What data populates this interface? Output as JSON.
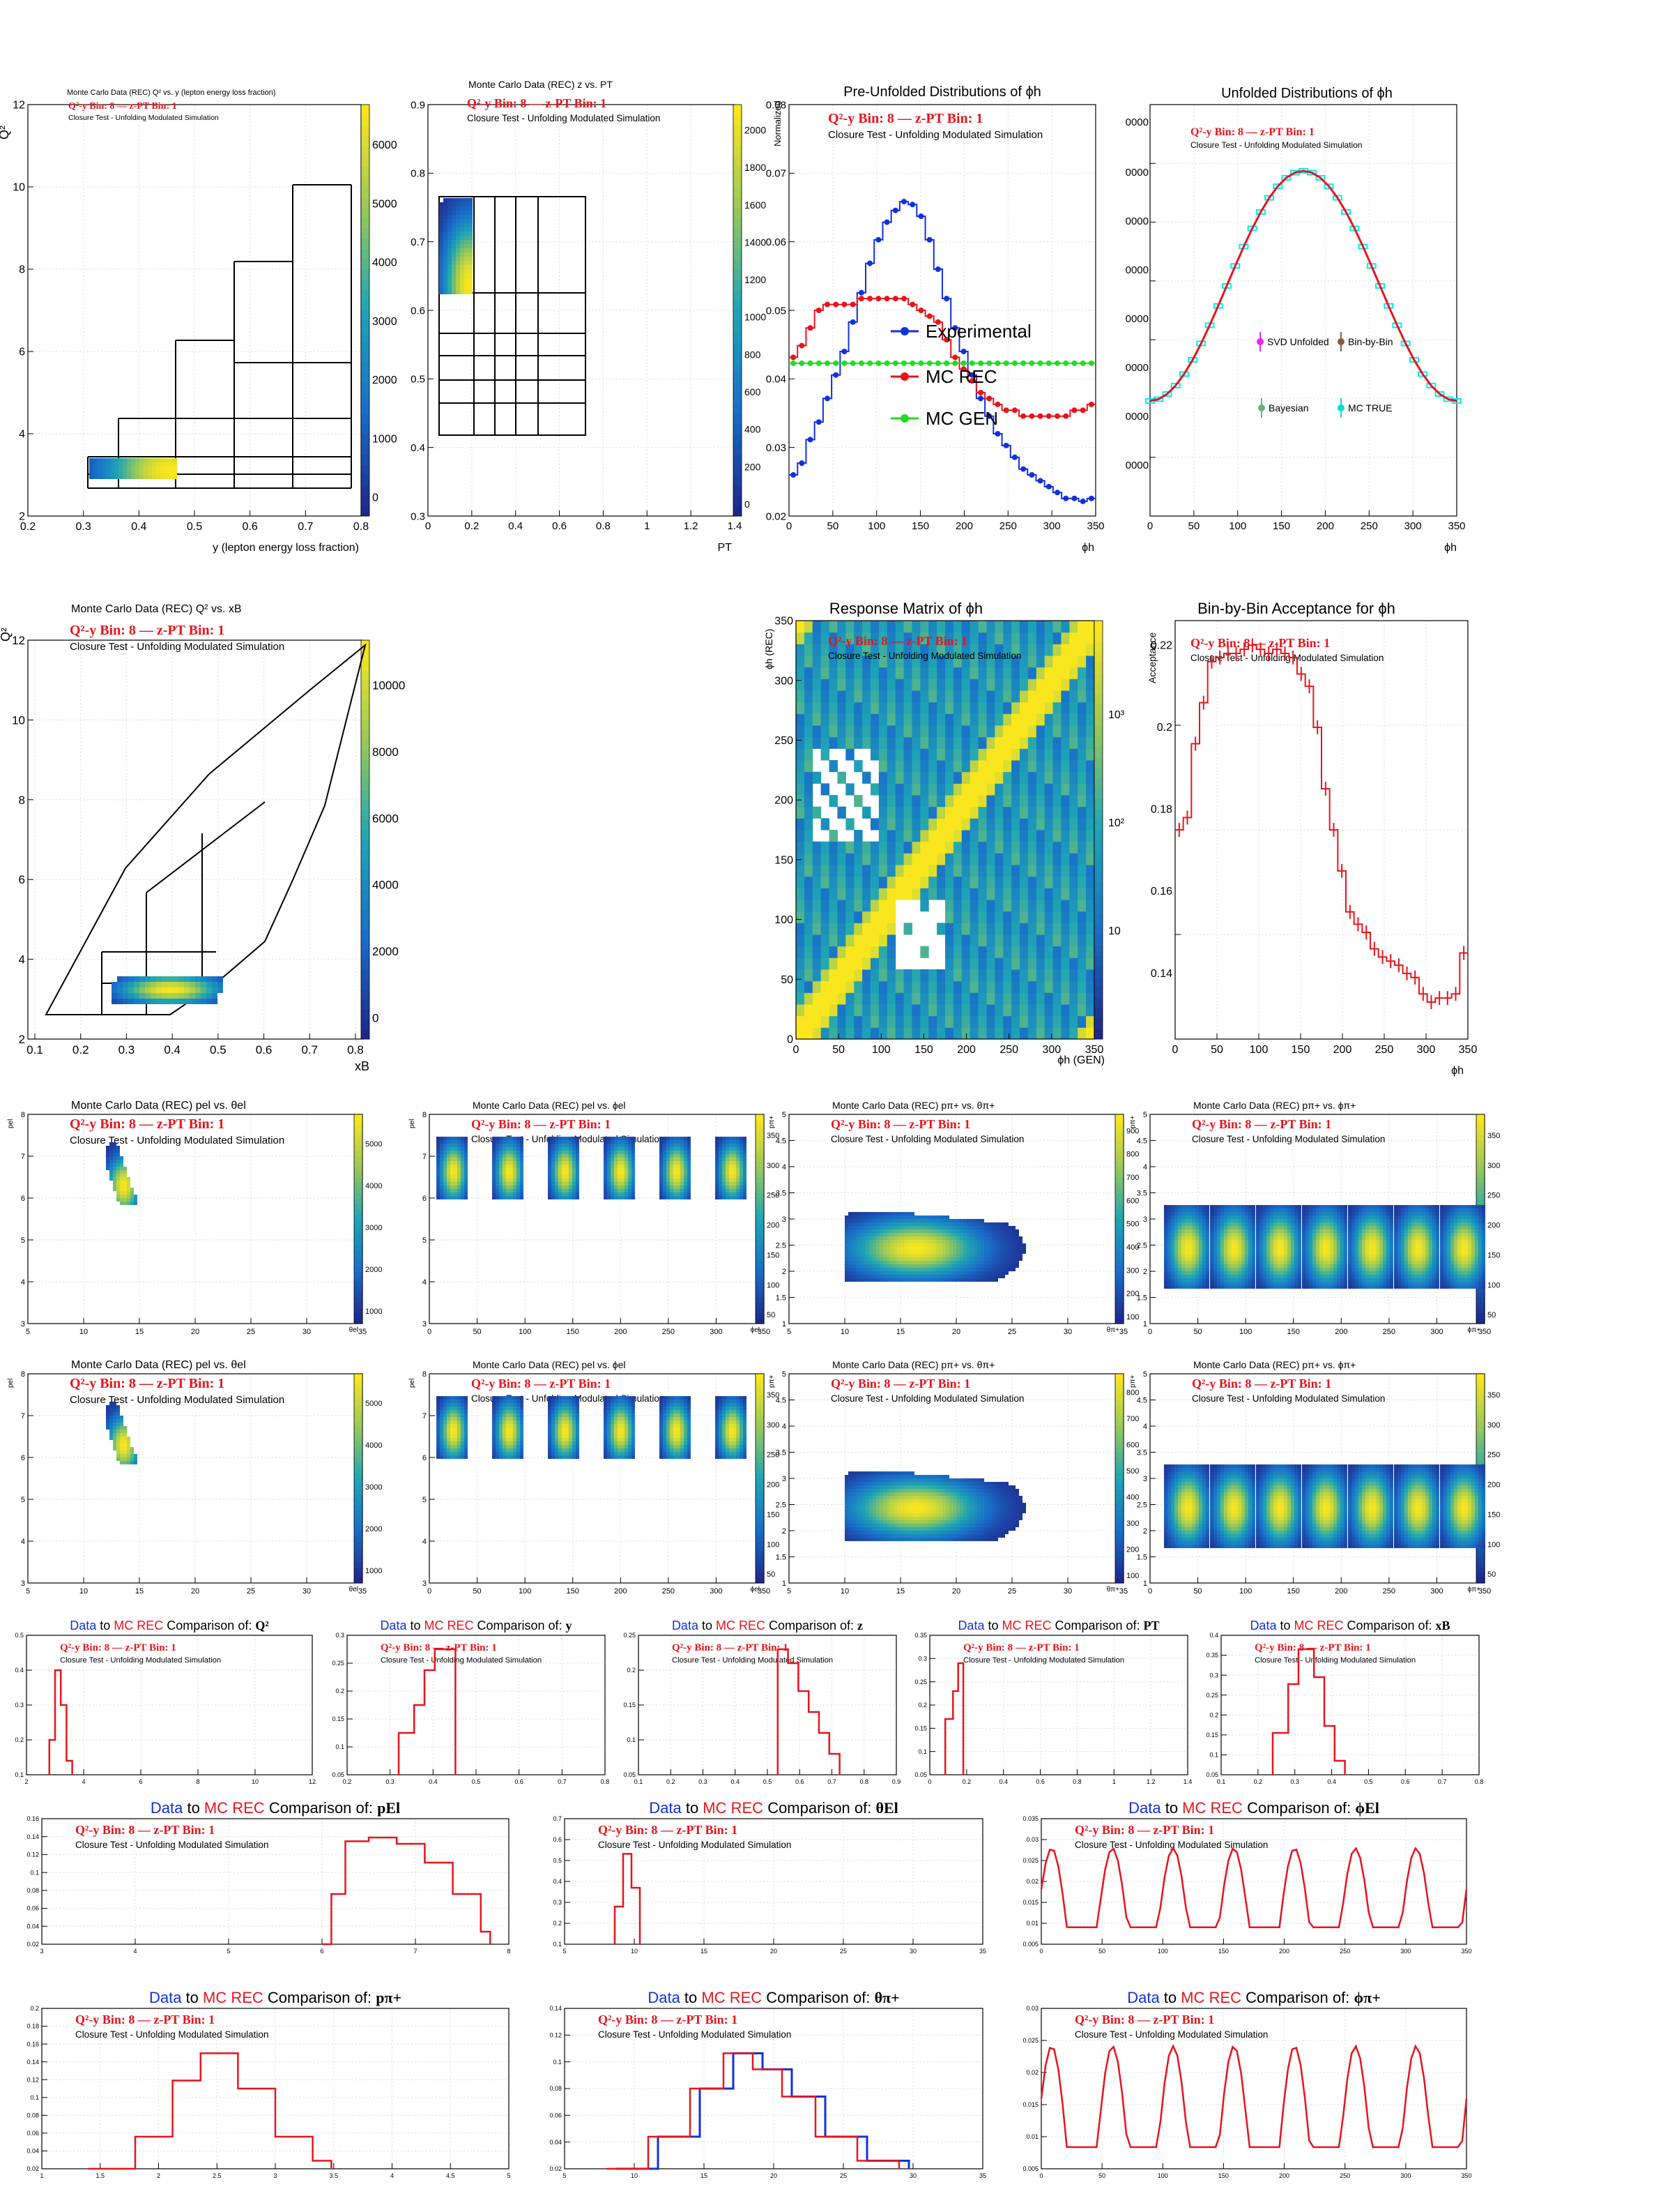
{
  "common": {
    "bin_label": "Q²-y Bin: 8 — z-PT Bin: 1",
    "subtitle": "Closure Test - Unfolding Modulated Simulation",
    "red": "#e8141c",
    "blue": "#1030e0",
    "green": "#22dd22"
  },
  "panels": [
    {
      "id": "q2_vs_y",
      "title": "Monte Carlo Data (REC) Q² vs. y (lepton energy loss fraction)",
      "xlabel": "y (lepton energy loss fraction)",
      "ylabel": "Q²",
      "xticks": [
        "0.2",
        "0.3",
        "0.4",
        "0.5",
        "0.6",
        "0.7",
        "0.8"
      ],
      "yticks": [
        "2",
        "4",
        "6",
        "8",
        "10",
        "12"
      ],
      "zticks": [
        "0",
        "1000",
        "2000",
        "3000",
        "4000",
        "5000",
        "6000"
      ]
    },
    {
      "id": "z_vs_pt",
      "title": "Monte Carlo Data (REC) z vs. PT",
      "xlabel": "PT",
      "ylabel": "z",
      "xticks": [
        "0",
        "0.2",
        "0.4",
        "0.6",
        "0.8",
        "1",
        "1.2",
        "1.4"
      ],
      "yticks": [
        "0.3",
        "0.4",
        "0.5",
        "0.6",
        "0.7",
        "0.8",
        "0.9"
      ],
      "zticks": [
        "0",
        "200",
        "400",
        "600",
        "800",
        "1000",
        "1200",
        "1400",
        "1600",
        "1800",
        "2000"
      ]
    },
    {
      "id": "pre_unfolded",
      "title": "Pre-Unfolded Distributions of ϕh",
      "xlabel": "ϕh",
      "ylabel": "Normalized",
      "xticks": [
        "0",
        "50",
        "100",
        "150",
        "200",
        "250",
        "300",
        "350"
      ],
      "yticks": [
        "0.02",
        "0.03",
        "0.04",
        "0.05",
        "0.06",
        "0.07",
        "0.08"
      ],
      "legend": [
        "Experimental",
        "MC REC",
        "MC GEN"
      ]
    },
    {
      "id": "unfolded",
      "title": "Unfolded Distributions of ϕh",
      "xlabel": "ϕh",
      "xticks": [
        "0",
        "50",
        "100",
        "150",
        "200",
        "250",
        "300",
        "350"
      ],
      "legend": [
        "SVD Unfolded",
        "Bin-by-Bin",
        "Bayesian",
        "MC TRUE"
      ]
    },
    {
      "id": "q2_vs_xb",
      "title": "Monte Carlo Data (REC) Q² vs. xB",
      "xlabel": "xB",
      "ylabel": "Q²",
      "xticks": [
        "0.1",
        "0.2",
        "0.3",
        "0.4",
        "0.5",
        "0.6",
        "0.7",
        "0.8"
      ],
      "yticks": [
        "2",
        "4",
        "6",
        "8",
        "10",
        "12"
      ],
      "zticks": [
        "0",
        "2000",
        "4000",
        "6000",
        "8000",
        "10000"
      ]
    },
    {
      "id": "response",
      "title": "Response Matrix of ϕh",
      "xlabel": "ϕh (GEN)",
      "ylabel": "ϕh (REC)",
      "xticks": [
        "0",
        "50",
        "100",
        "150",
        "200",
        "250",
        "300",
        "350"
      ],
      "yticks": [
        "0",
        "50",
        "100",
        "150",
        "200",
        "250",
        "300",
        "350"
      ],
      "zticks": [
        "10",
        "10²",
        "10³"
      ]
    },
    {
      "id": "acceptance",
      "title": "Bin-by-Bin Acceptance for ϕh",
      "xlabel": "ϕh",
      "ylabel": "Acceptance",
      "xticks": [
        "0",
        "50",
        "100",
        "150",
        "200",
        "250",
        "300",
        "350"
      ],
      "yticks": [
        "0.14",
        "0.16",
        "0.18",
        "0.2",
        "0.22"
      ]
    }
  ],
  "kin_rows": [
    [
      {
        "title": "Monte Carlo Data (REC) pel vs. θel",
        "xlabel": "θel",
        "ylabel": "pel",
        "xticks": [
          "5",
          "10",
          "15",
          "20",
          "25",
          "30",
          "35"
        ],
        "yticks": [
          "3",
          "4",
          "5",
          "6",
          "7",
          "8"
        ],
        "zticks": [
          "1000",
          "2000",
          "3000",
          "4000",
          "5000"
        ]
      },
      {
        "title": "Monte Carlo Data (REC) pel vs. ϕel",
        "xlabel": "ϕel",
        "ylabel": "pel",
        "xticks": [
          "0",
          "50",
          "100",
          "150",
          "200",
          "250",
          "300",
          "350"
        ],
        "yticks": [
          "3",
          "4",
          "5",
          "6",
          "7",
          "8"
        ],
        "zticks": [
          "50",
          "100",
          "150",
          "200",
          "250",
          "300",
          "350"
        ]
      },
      {
        "title": "Monte Carlo Data (REC) pπ+ vs. θπ+",
        "xlabel": "θπ+",
        "ylabel": "pπ+",
        "xticks": [
          "5",
          "10",
          "15",
          "20",
          "25",
          "30",
          "35"
        ],
        "yticks": [
          "1",
          "1.5",
          "2",
          "2.5",
          "3",
          "3.5",
          "4",
          "4.5",
          "5"
        ],
        "zticks": [
          "100",
          "200",
          "300",
          "400",
          "500",
          "600",
          "700",
          "800",
          "900"
        ]
      },
      {
        "title": "Monte Carlo Data (REC) pπ+ vs. ϕπ+",
        "xlabel": "ϕπ+",
        "ylabel": "pπ+",
        "xticks": [
          "0",
          "50",
          "100",
          "150",
          "200",
          "250",
          "300",
          "350"
        ],
        "yticks": [
          "1",
          "1.5",
          "2",
          "2.5",
          "3",
          "3.5",
          "4",
          "4.5",
          "5"
        ],
        "zticks": [
          "50",
          "100",
          "150",
          "200",
          "250",
          "300",
          "350"
        ]
      }
    ],
    [
      {
        "title": "Monte Carlo Data (REC) pel vs. θel",
        "xlabel": "θel",
        "ylabel": "pel",
        "xticks": [
          "5",
          "10",
          "15",
          "20",
          "25",
          "30",
          "35"
        ],
        "yticks": [
          "3",
          "4",
          "5",
          "6",
          "7",
          "8"
        ],
        "zticks": [
          "1000",
          "2000",
          "3000",
          "4000",
          "5000"
        ]
      },
      {
        "title": "Monte Carlo Data (REC) pel vs. ϕel",
        "xlabel": "ϕel",
        "ylabel": "pel",
        "xticks": [
          "0",
          "50",
          "100",
          "150",
          "200",
          "250",
          "300",
          "350"
        ],
        "yticks": [
          "3",
          "4",
          "5",
          "6",
          "7",
          "8"
        ],
        "zticks": [
          "50",
          "100",
          "150",
          "200",
          "250",
          "300",
          "350"
        ]
      },
      {
        "title": "Monte Carlo Data (REC) pπ+ vs. θπ+",
        "xlabel": "θπ+",
        "ylabel": "pπ+",
        "xticks": [
          "5",
          "10",
          "15",
          "20",
          "25",
          "30",
          "35"
        ],
        "yticks": [
          "1",
          "1.5",
          "2",
          "2.5",
          "3",
          "3.5",
          "4",
          "4.5",
          "5"
        ],
        "zticks": [
          "100",
          "200",
          "300",
          "400",
          "500",
          "600",
          "700",
          "800"
        ]
      },
      {
        "title": "Monte Carlo Data (REC) pπ+ vs. ϕπ+",
        "xlabel": "ϕπ+",
        "ylabel": "pπ+",
        "xticks": [
          "0",
          "50",
          "100",
          "150",
          "200",
          "250",
          "300",
          "350"
        ],
        "yticks": [
          "1",
          "1.5",
          "2",
          "2.5",
          "3",
          "3.5",
          "4",
          "4.5",
          "5"
        ],
        "zticks": [
          "50",
          "100",
          "150",
          "200",
          "250",
          "300",
          "350"
        ]
      }
    ]
  ],
  "comparisons": [
    {
      "var": "Q²",
      "xticks": [
        "2",
        "4",
        "6",
        "8",
        "10",
        "12"
      ],
      "yticks": [
        "0.1",
        "0.2",
        "0.3",
        "0.4",
        "0.5"
      ]
    },
    {
      "var": "y",
      "xticks": [
        "0.2",
        "0.3",
        "0.4",
        "0.5",
        "0.6",
        "0.7",
        "0.8"
      ],
      "yticks": [
        "0.05",
        "0.1",
        "0.15",
        "0.2",
        "0.25",
        "0.3"
      ]
    },
    {
      "var": "z",
      "xticks": [
        "0.1",
        "0.2",
        "0.3",
        "0.4",
        "0.5",
        "0.6",
        "0.7",
        "0.8",
        "0.9"
      ],
      "yticks": [
        "0.05",
        "0.1",
        "0.15",
        "0.2",
        "0.25"
      ]
    },
    {
      "var": "PT",
      "xticks": [
        "0",
        "0.2",
        "0.4",
        "0.6",
        "0.8",
        "1",
        "1.2",
        "1.4"
      ],
      "yticks": [
        "0.05",
        "0.1",
        "0.15",
        "0.2",
        "0.25",
        "0.3",
        "0.35"
      ]
    },
    {
      "var": "xB",
      "xticks": [
        "0.1",
        "0.2",
        "0.3",
        "0.4",
        "0.5",
        "0.6",
        "0.7",
        "0.8"
      ],
      "yticks": [
        "0.05",
        "0.1",
        "0.15",
        "0.2",
        "0.25",
        "0.3",
        "0.35",
        "0.4"
      ]
    },
    {
      "var": "pEl",
      "xticks": [
        "3",
        "4",
        "5",
        "6",
        "7",
        "8"
      ],
      "yticks": [
        "0.02",
        "0.04",
        "0.06",
        "0.08",
        "0.1",
        "0.12",
        "0.14",
        "0.16"
      ]
    },
    {
      "var": "θEl",
      "xticks": [
        "5",
        "10",
        "15",
        "20",
        "25",
        "30",
        "35"
      ],
      "yticks": [
        "0.1",
        "0.2",
        "0.3",
        "0.4",
        "0.5",
        "0.6",
        "0.7"
      ]
    },
    {
      "var": "ϕEl",
      "xticks": [
        "0",
        "50",
        "100",
        "150",
        "200",
        "250",
        "300",
        "350"
      ],
      "yticks": [
        "0.005",
        "0.01",
        "0.015",
        "0.02",
        "0.025",
        "0.03",
        "0.035"
      ]
    },
    {
      "var": "pπ+",
      "xticks": [
        "1",
        "1.5",
        "2",
        "2.5",
        "3",
        "3.5",
        "4",
        "4.5",
        "5"
      ],
      "yticks": [
        "0.02",
        "0.04",
        "0.06",
        "0.08",
        "0.1",
        "0.12",
        "0.14",
        "0.16",
        "0.18",
        "0.2"
      ]
    },
    {
      "var": "θπ+",
      "xticks": [
        "5",
        "10",
        "15",
        "20",
        "25",
        "30",
        "35"
      ],
      "yticks": [
        "0.02",
        "0.04",
        "0.06",
        "0.08",
        "0.1",
        "0.12",
        "0.14"
      ]
    },
    {
      "var": "ϕπ+",
      "xticks": [
        "0",
        "50",
        "100",
        "150",
        "200",
        "250",
        "300",
        "350"
      ],
      "yticks": [
        "0.005",
        "0.01",
        "0.015",
        "0.02",
        "0.025",
        "0.03"
      ]
    }
  ],
  "comparison_text": {
    "data": "Data",
    "to": "to",
    "mc": "MC REC",
    "comp": "Comparison of:"
  },
  "chart_data": [
    {
      "type": "line",
      "panel": "pre_unfolded",
      "x": [
        5,
        15,
        25,
        35,
        45,
        55,
        65,
        75,
        85,
        95,
        105,
        115,
        125,
        135,
        145,
        155,
        165,
        175,
        185,
        195,
        205,
        215,
        225,
        235,
        245,
        255,
        265,
        275,
        285,
        295,
        305,
        315,
        325,
        335,
        345,
        355
      ],
      "series": [
        {
          "name": "Experimental",
          "values": [
            0.023,
            0.025,
            0.029,
            0.032,
            0.036,
            0.04,
            0.044,
            0.049,
            0.054,
            0.059,
            0.063,
            0.066,
            0.068,
            0.0695,
            0.069,
            0.067,
            0.063,
            0.058,
            0.053,
            0.048,
            0.044,
            0.04,
            0.036,
            0.033,
            0.03,
            0.028,
            0.026,
            0.024,
            0.023,
            0.022,
            0.021,
            0.02,
            0.019,
            0.019,
            0.0185,
            0.019
          ]
        },
        {
          "name": "MC REC",
          "values": [
            0.043,
            0.045,
            0.048,
            0.051,
            0.052,
            0.052,
            0.052,
            0.052,
            0.053,
            0.053,
            0.053,
            0.053,
            0.053,
            0.053,
            0.052,
            0.051,
            0.05,
            0.049,
            0.046,
            0.043,
            0.041,
            0.039,
            0.037,
            0.036,
            0.035,
            0.034,
            0.034,
            0.033,
            0.033,
            0.033,
            0.033,
            0.033,
            0.033,
            0.034,
            0.034,
            0.035
          ]
        },
        {
          "name": "MC GEN",
          "values": [
            0.042,
            0.042,
            0.042,
            0.042,
            0.042,
            0.042,
            0.042,
            0.042,
            0.042,
            0.042,
            0.042,
            0.042,
            0.042,
            0.042,
            0.042,
            0.042,
            0.042,
            0.042,
            0.042,
            0.042,
            0.042,
            0.042,
            0.042,
            0.042,
            0.042,
            0.042,
            0.042,
            0.042,
            0.042,
            0.042,
            0.042,
            0.042,
            0.042,
            0.042,
            0.042,
            0.042
          ]
        }
      ]
    },
    {
      "type": "line",
      "panel": "acceptance",
      "x": [
        5,
        15,
        25,
        35,
        45,
        55,
        65,
        75,
        85,
        95,
        105,
        115,
        125,
        135,
        145,
        155,
        165,
        175,
        185,
        195,
        205,
        215,
        225,
        235,
        245,
        255,
        265,
        275,
        285,
        295,
        305,
        315,
        325,
        335,
        345,
        355
      ],
      "series": [
        {
          "name": "Acceptance",
          "values": [
            0.175,
            0.178,
            0.196,
            0.206,
            0.216,
            0.217,
            0.218,
            0.218,
            0.219,
            0.22,
            0.219,
            0.218,
            0.219,
            0.218,
            0.217,
            0.213,
            0.21,
            0.2,
            0.185,
            0.175,
            0.165,
            0.155,
            0.152,
            0.15,
            0.146,
            0.144,
            0.143,
            0.142,
            0.14,
            0.139,
            0.135,
            0.133,
            0.134,
            0.134,
            0.135,
            0.145
          ]
        }
      ]
    }
  ]
}
